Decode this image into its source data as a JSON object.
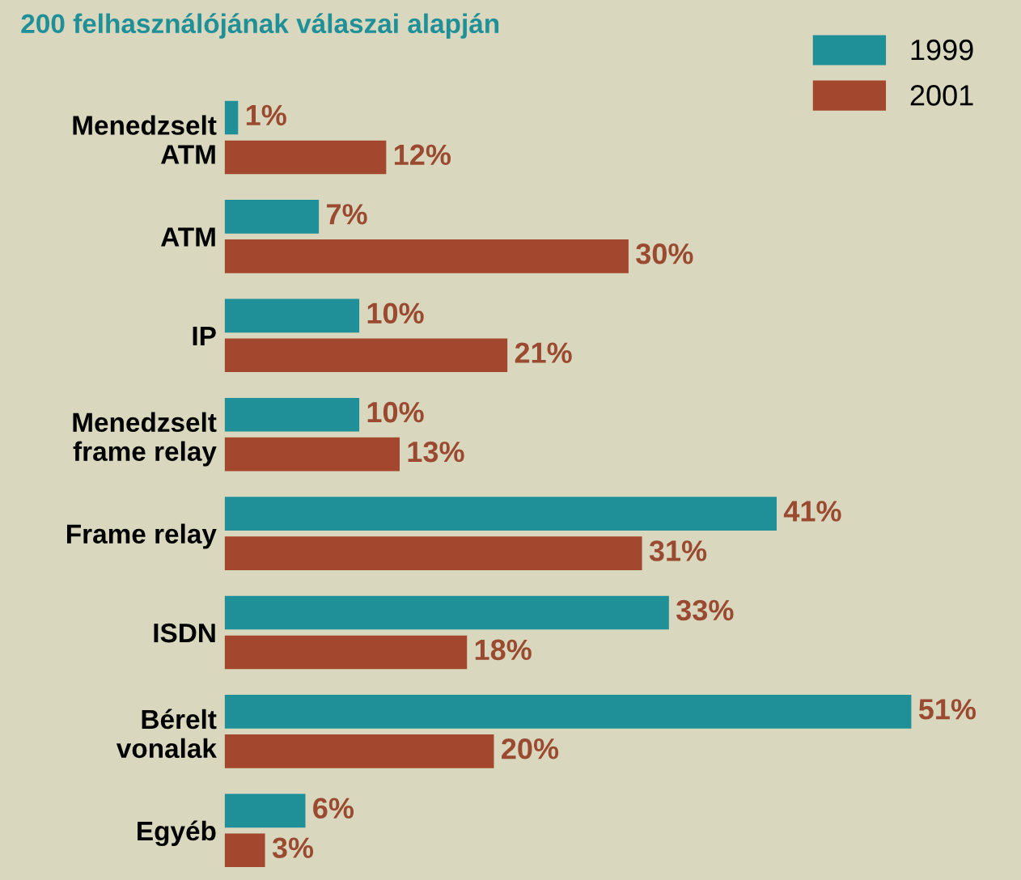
{
  "chart_data": {
    "type": "bar",
    "orientation": "horizontal",
    "title": "200 felhasználójának válaszai alapján",
    "categories": [
      "Menedzselt\nATM",
      "ATM",
      "IP",
      "Menedzselt\nframe relay",
      "Frame relay",
      "ISDN",
      "Bérelt\nvonalak",
      "Egyéb"
    ],
    "series": [
      {
        "name": "1999",
        "color": "#1f8f98",
        "values": [
          1,
          7,
          10,
          10,
          41,
          33,
          51,
          6
        ],
        "value_labels": [
          "1%",
          "7%",
          "10%",
          "10%",
          "41%",
          "33%",
          "51%",
          "6%"
        ]
      },
      {
        "name": "2001",
        "color": "#a3482f",
        "values": [
          12,
          30,
          21,
          13,
          31,
          18,
          20,
          3
        ],
        "value_labels": [
          "12%",
          "30%",
          "21%",
          "13%",
          "31%",
          "18%",
          "20%",
          "3%"
        ]
      }
    ],
    "legend": "top right",
    "grid": false
  }
}
